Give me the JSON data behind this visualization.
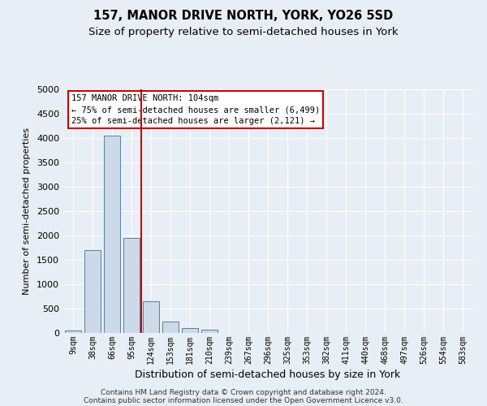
{
  "title": "157, MANOR DRIVE NORTH, YORK, YO26 5SD",
  "subtitle": "Size of property relative to semi-detached houses in York",
  "xlabel": "Distribution of semi-detached houses by size in York",
  "ylabel": "Number of semi-detached properties",
  "categories": [
    "9sqm",
    "38sqm",
    "66sqm",
    "95sqm",
    "124sqm",
    "153sqm",
    "181sqm",
    "210sqm",
    "239sqm",
    "267sqm",
    "296sqm",
    "325sqm",
    "353sqm",
    "382sqm",
    "411sqm",
    "440sqm",
    "468sqm",
    "497sqm",
    "526sqm",
    "554sqm",
    "583sqm"
  ],
  "values": [
    50,
    1700,
    4050,
    1950,
    650,
    230,
    100,
    60,
    0,
    0,
    0,
    0,
    0,
    0,
    0,
    0,
    0,
    0,
    0,
    0,
    0
  ],
  "bar_color": "#ccd9e8",
  "bar_edge_color": "#5580a0",
  "red_line_x": 3.5,
  "red_line_color": "#cc0000",
  "ylim": [
    0,
    5000
  ],
  "yticks": [
    0,
    500,
    1000,
    1500,
    2000,
    2500,
    3000,
    3500,
    4000,
    4500,
    5000
  ],
  "annotation_text": "157 MANOR DRIVE NORTH: 104sqm\n← 75% of semi-detached houses are smaller (6,499)\n25% of semi-detached houses are larger (2,121) →",
  "annotation_box_color": "#ffffff",
  "annotation_box_edge": "#cc0000",
  "footnote1": "Contains HM Land Registry data © Crown copyright and database right 2024.",
  "footnote2": "Contains public sector information licensed under the Open Government Licence v3.0.",
  "background_color": "#e8eef5",
  "title_fontsize": 10.5,
  "subtitle_fontsize": 9.5
}
